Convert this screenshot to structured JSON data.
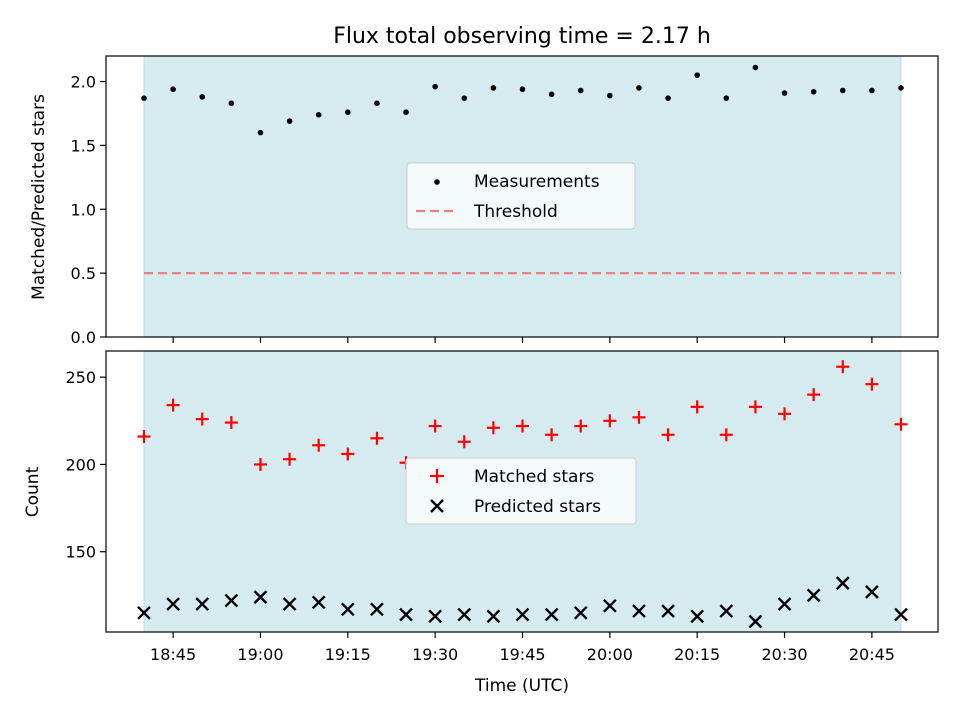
{
  "chart_data": [
    {
      "type": "scatter",
      "title": "Flux total observing time = 2.17 h",
      "ylabel": "Matched/Predicted stars",
      "xlabel": "",
      "ylim": [
        0,
        2.2
      ],
      "yticks": [
        "0.0",
        "0.5",
        "1.0",
        "1.5",
        "2.0"
      ],
      "threshold": 0.5,
      "legend": {
        "placement": "center",
        "entries": [
          "Measurements",
          "Threshold"
        ]
      },
      "colors": {
        "measurements": "#000000",
        "threshold": "#f08080",
        "band": "#d5ebf0"
      },
      "series": [
        {
          "name": "Measurements",
          "x": [
            "18:40",
            "18:45",
            "18:50",
            "18:55",
            "19:00",
            "19:05",
            "19:10",
            "19:15",
            "19:20",
            "19:25",
            "19:30",
            "19:35",
            "19:40",
            "19:45",
            "19:50",
            "19:55",
            "20:00",
            "20:05",
            "20:10",
            "20:15",
            "20:20",
            "20:25",
            "20:30",
            "20:35",
            "20:40",
            "20:45",
            "20:50"
          ],
          "y": [
            1.87,
            1.94,
            1.88,
            1.83,
            1.6,
            1.69,
            1.74,
            1.76,
            1.83,
            1.76,
            1.96,
            1.87,
            1.95,
            1.94,
            1.9,
            1.93,
            1.89,
            1.95,
            1.87,
            2.05,
            1.87,
            2.11,
            1.91,
            1.92,
            1.93,
            1.93,
            1.95
          ]
        }
      ]
    },
    {
      "type": "scatter",
      "title": "",
      "ylabel": "Count",
      "xlabel": "Time (UTC)",
      "ylim": [
        104,
        265
      ],
      "yticks": [
        "150",
        "200",
        "250"
      ],
      "xticks": [
        "18:45",
        "19:00",
        "19:15",
        "19:30",
        "19:45",
        "20:00",
        "20:15",
        "20:30",
        "20:45"
      ],
      "legend": {
        "placement": "center",
        "entries": [
          "Matched stars",
          "Predicted stars"
        ]
      },
      "colors": {
        "matched": "#ff0000",
        "predicted": "#000000",
        "band": "#d5ebf0"
      },
      "series": [
        {
          "name": "Matched stars",
          "x": [
            "18:40",
            "18:45",
            "18:50",
            "18:55",
            "19:00",
            "19:05",
            "19:10",
            "19:15",
            "19:20",
            "19:25",
            "19:30",
            "19:35",
            "19:40",
            "19:45",
            "19:50",
            "19:55",
            "20:00",
            "20:05",
            "20:10",
            "20:15",
            "20:20",
            "20:25",
            "20:30",
            "20:35",
            "20:40",
            "20:45",
            "20:50"
          ],
          "y": [
            216,
            234,
            226,
            224,
            200,
            203,
            211,
            206,
            215,
            201,
            222,
            213,
            221,
            222,
            217,
            222,
            225,
            227,
            217,
            233,
            217,
            233,
            229,
            240,
            256,
            246,
            223
          ]
        },
        {
          "name": "Predicted stars",
          "x": [
            "18:40",
            "18:45",
            "18:50",
            "18:55",
            "19:00",
            "19:05",
            "19:10",
            "19:15",
            "19:20",
            "19:25",
            "19:30",
            "19:35",
            "19:40",
            "19:45",
            "19:50",
            "19:55",
            "20:00",
            "20:05",
            "20:10",
            "20:15",
            "20:20",
            "20:25",
            "20:30",
            "20:35",
            "20:40",
            "20:45",
            "20:50"
          ],
          "y": [
            115,
            120,
            120,
            122,
            124,
            120,
            121,
            117,
            117,
            114,
            113,
            114,
            113,
            114,
            114,
            115,
            119,
            116,
            116,
            113,
            116,
            110,
            120,
            125,
            132,
            127,
            114
          ]
        }
      ]
    }
  ]
}
